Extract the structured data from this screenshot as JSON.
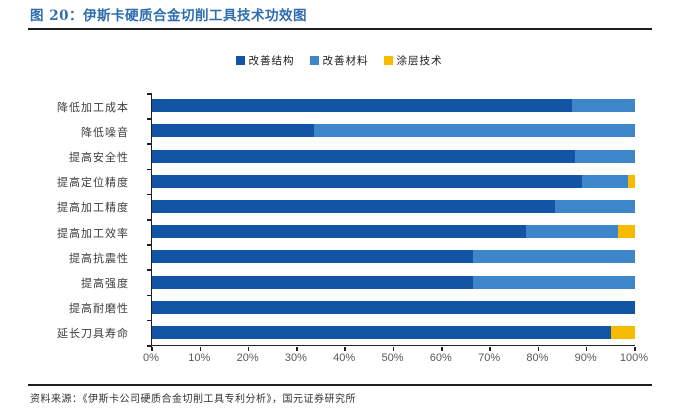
{
  "header": {
    "title": "图 20：伊斯卡硬质合金切削工具技术功效图"
  },
  "footer": {
    "source": "资料来源：《伊斯卡公司硬质合金切削工具专利分析》，国元证券研究所"
  },
  "colors": {
    "title_blue": "#2e6dae",
    "rule_dark": "#1f1f1f",
    "series_structure": "#1255a5",
    "series_material": "#3e86ca",
    "series_coating": "#f8ba00"
  },
  "chart_data": {
    "type": "bar",
    "orientation": "horizontal",
    "stacked": true,
    "grid": false,
    "legend_position": "top",
    "xlim": [
      0,
      100
    ],
    "x_ticks": [
      "0%",
      "10%",
      "20%",
      "30%",
      "40%",
      "50%",
      "60%",
      "70%",
      "80%",
      "90%",
      "100%"
    ],
    "categories": [
      "降低加工成本",
      "降低噪音",
      "提高安全性",
      "提高定位精度",
      "提高加工精度",
      "提高加工效率",
      "提高抗震性",
      "提高强度",
      "提高耐磨性",
      "延长刀具寿命"
    ],
    "series": [
      {
        "name": "改善结构",
        "color": "#1255a5",
        "values": [
          87,
          33.5,
          87.5,
          89,
          83.5,
          77.5,
          66.5,
          66.5,
          100,
          95
        ]
      },
      {
        "name": "改善材料",
        "color": "#3e86ca",
        "values": [
          13,
          66.5,
          12.5,
          9.5,
          16.5,
          19,
          33.5,
          33.5,
          0,
          0
        ]
      },
      {
        "name": "涂层技术",
        "color": "#f8ba00",
        "values": [
          0,
          0,
          0,
          1.5,
          0,
          3.5,
          0,
          0,
          0,
          5
        ]
      }
    ]
  }
}
